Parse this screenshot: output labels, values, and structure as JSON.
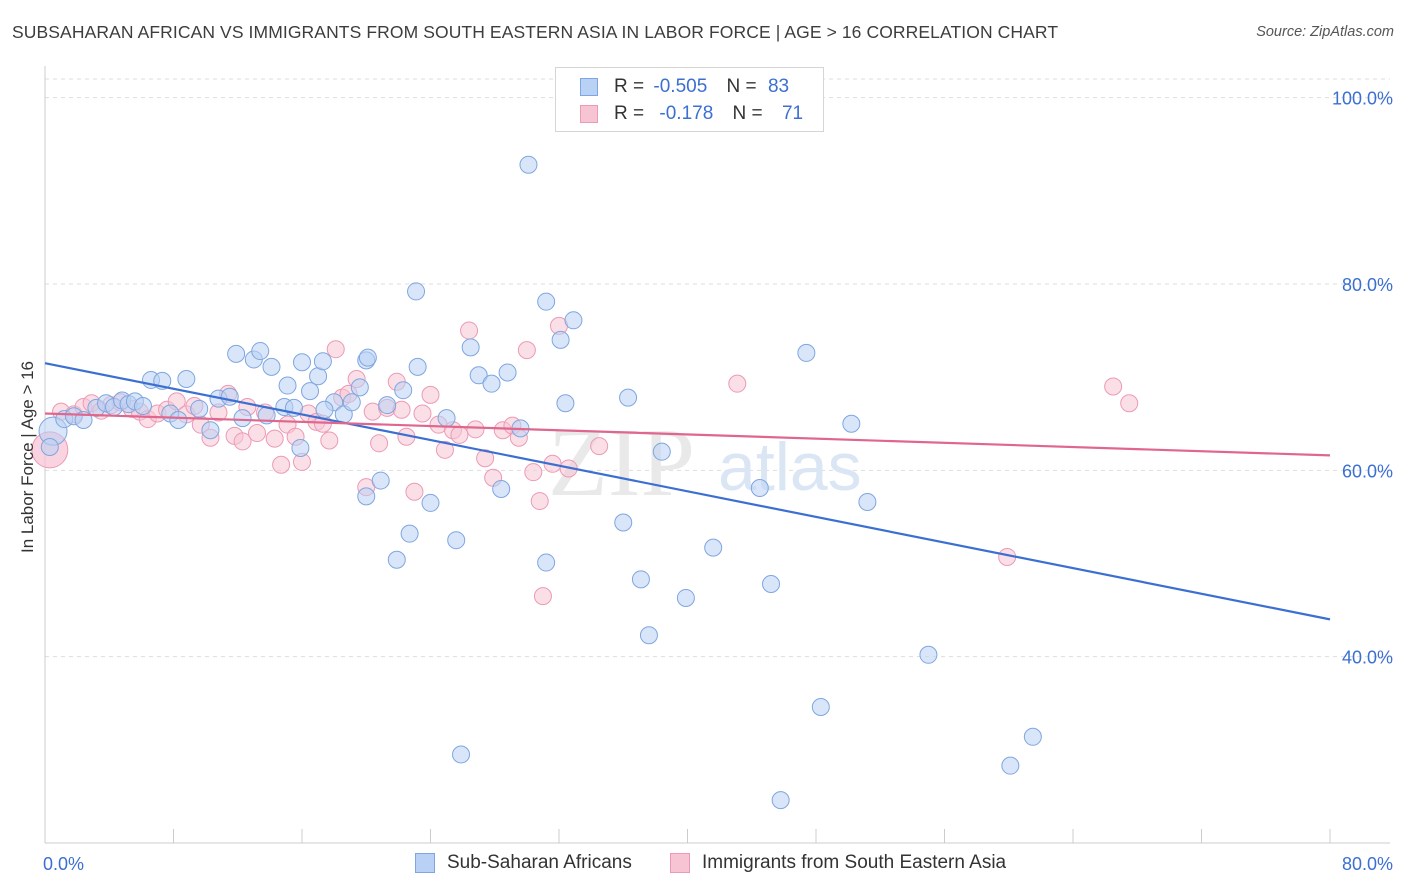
{
  "title": "SUBSAHARAN AFRICAN VS IMMIGRANTS FROM SOUTH EASTERN ASIA IN LABOR FORCE | AGE > 16 CORRELATION CHART",
  "source": "Source: ZipAtlas.com",
  "watermark": {
    "zip": "ZIP",
    "atlas": "atlas"
  },
  "colors": {
    "blue": "#3b6fd1",
    "blue_fill": "#b9d1f4",
    "blue_stroke": "#7ea6e0",
    "pink": "#e0668e",
    "pink_fill": "#f7c4d4",
    "pink_stroke": "#ec9ab5",
    "axis_text": "#3b6fd1",
    "grid": "#dddddd"
  },
  "legend": {
    "rows": [
      {
        "r_label": "R =",
        "r_value": "-0.505",
        "n_label": "N =",
        "n_value": "83"
      },
      {
        "r_label": "R =",
        "r_value": "-0.178",
        "n_label": "N =",
        "n_value": "71"
      }
    ]
  },
  "bottom_legend": {
    "series1": "Sub-Saharan Africans",
    "series2": "Immigrants from South Eastern Asia"
  },
  "chart_data": {
    "type": "scatter",
    "title": "SUBSAHARAN AFRICAN VS IMMIGRANTS FROM SOUTH EASTERN ASIA IN LABOR FORCE | AGE > 16 CORRELATION CHART",
    "xlabel": "",
    "ylabel": "In Labor Force | Age > 16",
    "xlim": [
      0,
      80
    ],
    "ylim": [
      20,
      102
    ],
    "x_tick_labels": [
      "0.0%",
      "80.0%"
    ],
    "y_ticks": [
      40,
      60,
      80,
      100
    ],
    "y_tick_labels": [
      "40.0%",
      "60.0%",
      "80.0%",
      "100.0%"
    ],
    "grid": true,
    "legend_position": "top-center",
    "series": [
      {
        "name": "Sub-Saharan Africans",
        "color": "#3b6fd1",
        "trend": {
          "x": [
            0,
            80
          ],
          "y": [
            71.5,
            44.0
          ]
        },
        "points": [
          [
            0.5,
            64.2
          ],
          [
            1.2,
            65.5
          ],
          [
            1.8,
            65.8
          ],
          [
            2.4,
            65.4
          ],
          [
            3.2,
            66.7
          ],
          [
            3.8,
            67.2
          ],
          [
            4.3,
            66.8
          ],
          [
            4.8,
            67.5
          ],
          [
            5.2,
            67.1
          ],
          [
            5.6,
            67.4
          ],
          [
            6.1,
            66.9
          ],
          [
            6.6,
            69.7
          ],
          [
            7.3,
            69.6
          ],
          [
            7.8,
            66.1
          ],
          [
            8.3,
            65.4
          ],
          [
            8.8,
            69.8
          ],
          [
            9.6,
            66.6
          ],
          [
            10.3,
            64.3
          ],
          [
            10.8,
            67.7
          ],
          [
            11.5,
            67.9
          ],
          [
            12.3,
            65.6
          ],
          [
            11.9,
            72.5
          ],
          [
            13.0,
            71.9
          ],
          [
            13.4,
            72.8
          ],
          [
            14.1,
            71.1
          ],
          [
            14.9,
            66.8
          ],
          [
            15.1,
            69.1
          ],
          [
            15.5,
            66.7
          ],
          [
            15.9,
            62.4
          ],
          [
            16.0,
            71.6
          ],
          [
            16.5,
            68.5
          ],
          [
            17.0,
            70.1
          ],
          [
            17.3,
            71.7
          ],
          [
            18.0,
            67.3
          ],
          [
            18.6,
            66.0
          ],
          [
            19.1,
            67.3
          ],
          [
            19.6,
            68.9
          ],
          [
            20.0,
            71.8
          ],
          [
            20.1,
            72.1
          ],
          [
            20.9,
            58.9
          ],
          [
            21.3,
            67.0
          ],
          [
            21.9,
            50.4
          ],
          [
            22.3,
            68.6
          ],
          [
            22.7,
            53.2
          ],
          [
            23.2,
            71.1
          ],
          [
            24.0,
            56.5
          ],
          [
            25.0,
            65.6
          ],
          [
            25.6,
            52.5
          ],
          [
            25.9,
            29.5
          ],
          [
            26.5,
            73.2
          ],
          [
            27.0,
            70.2
          ],
          [
            27.8,
            69.3
          ],
          [
            28.4,
            58.0
          ],
          [
            28.8,
            70.5
          ],
          [
            29.6,
            64.5
          ],
          [
            30.1,
            92.8
          ],
          [
            31.2,
            78.1
          ],
          [
            31.2,
            50.1
          ],
          [
            32.1,
            74.0
          ],
          [
            32.9,
            76.1
          ],
          [
            32.4,
            67.2
          ],
          [
            36.0,
            54.4
          ],
          [
            36.3,
            67.8
          ],
          [
            37.1,
            48.3
          ],
          [
            37.6,
            42.3
          ],
          [
            38.4,
            62.0
          ],
          [
            39.9,
            46.3
          ],
          [
            41.6,
            51.7
          ],
          [
            44.5,
            58.1
          ],
          [
            45.2,
            47.8
          ],
          [
            45.8,
            24.6
          ],
          [
            47.4,
            72.6
          ],
          [
            48.3,
            34.6
          ],
          [
            50.2,
            65.0
          ],
          [
            51.2,
            56.6
          ],
          [
            55.0,
            40.2
          ],
          [
            60.1,
            28.3
          ],
          [
            61.5,
            31.4
          ],
          [
            23.1,
            79.2
          ],
          [
            20.0,
            57.2
          ],
          [
            17.4,
            66.5
          ],
          [
            13.8,
            65.9
          ],
          [
            0.3,
            62.5
          ]
        ]
      },
      {
        "name": "Immigrants from South Eastern Asia",
        "color": "#e0668e",
        "trend": {
          "x": [
            0,
            80
          ],
          "y": [
            66.1,
            61.6
          ]
        },
        "points": [
          [
            0.3,
            62.2
          ],
          [
            1.0,
            66.3
          ],
          [
            1.8,
            66.0
          ],
          [
            2.4,
            66.8
          ],
          [
            2.9,
            67.2
          ],
          [
            3.5,
            66.4
          ],
          [
            4.1,
            67.0
          ],
          [
            4.7,
            67.3
          ],
          [
            5.4,
            66.6
          ],
          [
            5.9,
            66.3
          ],
          [
            6.4,
            65.5
          ],
          [
            7.0,
            66.1
          ],
          [
            7.6,
            66.5
          ],
          [
            8.2,
            67.4
          ],
          [
            8.8,
            66.0
          ],
          [
            9.3,
            66.9
          ],
          [
            9.7,
            64.9
          ],
          [
            10.3,
            63.5
          ],
          [
            10.8,
            66.2
          ],
          [
            11.4,
            68.2
          ],
          [
            11.8,
            63.7
          ],
          [
            12.3,
            63.1
          ],
          [
            12.6,
            66.8
          ],
          [
            13.2,
            64.0
          ],
          [
            13.7,
            66.2
          ],
          [
            14.3,
            63.4
          ],
          [
            14.7,
            60.6
          ],
          [
            15.1,
            64.9
          ],
          [
            15.6,
            63.6
          ],
          [
            16.0,
            60.9
          ],
          [
            16.4,
            66.1
          ],
          [
            16.9,
            65.2
          ],
          [
            17.3,
            65.0
          ],
          [
            17.7,
            63.2
          ],
          [
            18.1,
            73.0
          ],
          [
            18.5,
            67.8
          ],
          [
            18.9,
            68.2
          ],
          [
            19.4,
            69.8
          ],
          [
            20.0,
            58.2
          ],
          [
            20.4,
            66.3
          ],
          [
            20.8,
            62.9
          ],
          [
            21.3,
            66.7
          ],
          [
            21.9,
            69.5
          ],
          [
            22.2,
            66.5
          ],
          [
            22.5,
            63.6
          ],
          [
            23.0,
            57.7
          ],
          [
            23.5,
            66.1
          ],
          [
            24.0,
            68.1
          ],
          [
            24.5,
            64.9
          ],
          [
            24.9,
            62.2
          ],
          [
            25.4,
            64.3
          ],
          [
            25.8,
            63.8
          ],
          [
            26.4,
            75.0
          ],
          [
            26.8,
            64.4
          ],
          [
            27.4,
            61.3
          ],
          [
            27.9,
            59.2
          ],
          [
            28.5,
            64.3
          ],
          [
            29.1,
            64.8
          ],
          [
            29.5,
            63.5
          ],
          [
            30.0,
            72.9
          ],
          [
            30.4,
            59.8
          ],
          [
            31.0,
            46.5
          ],
          [
            31.6,
            60.7
          ],
          [
            32.6,
            60.2
          ],
          [
            34.5,
            62.6
          ],
          [
            32.0,
            75.5
          ],
          [
            43.1,
            69.3
          ],
          [
            59.9,
            50.7
          ],
          [
            66.5,
            69.0
          ],
          [
            67.5,
            67.2
          ],
          [
            30.8,
            56.7
          ]
        ]
      }
    ]
  }
}
